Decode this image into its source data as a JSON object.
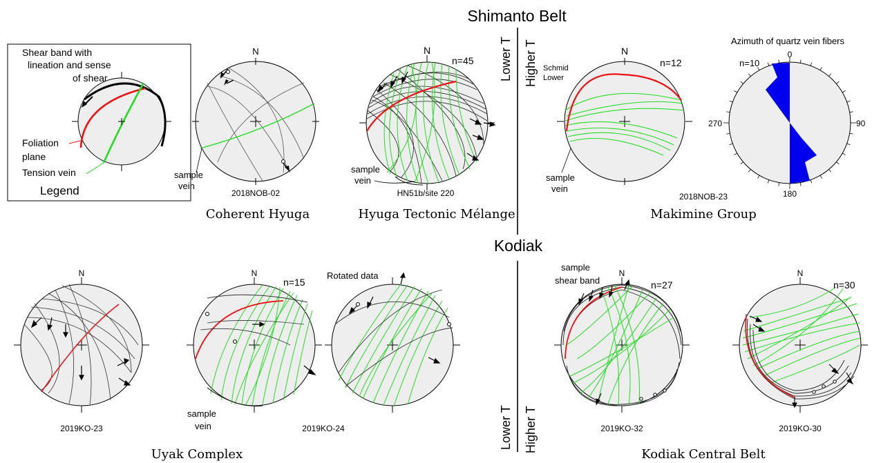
{
  "headings": {
    "top": "Shimanto Belt",
    "bottom": "Kodiak"
  },
  "temps": {
    "lower": "Lower T",
    "higher": "Higher T"
  },
  "north": "N",
  "legend": {
    "shear": [
      "Shear band with",
      "lineation and sense",
      "of shear"
    ],
    "foliation": [
      "Foliation",
      "plane"
    ],
    "tension": "Tension vein",
    "title": "Legend"
  },
  "stereonets": {
    "coherent_hyuga": {
      "sample": "2018NOB-02",
      "note": [
        "sample",
        "vein"
      ],
      "group": "Coherent Hyuga"
    },
    "hyuga_melange": {
      "sample": "HN51b/site 220",
      "count": "n=45",
      "note": [
        "sample",
        "vein"
      ],
      "group": "Hyuga Tectonic Mélange"
    },
    "makimine": {
      "sample": "2018NOB-23",
      "count": "n=12",
      "note": [
        "sample",
        "vein"
      ],
      "projection": [
        "Schmid",
        "Lower"
      ],
      "group": "Makimine Group"
    },
    "rose": {
      "title": "Azimuth of quartz vein fibers",
      "count": "n=10",
      "ticks": {
        "north": "0",
        "east": "90",
        "south": "180",
        "west": "270"
      }
    },
    "ko23": {
      "sample": "2019KO-23"
    },
    "ko24": {
      "sample": "2019KO-24",
      "count": "n=15",
      "note": [
        "sample",
        "vein"
      ]
    },
    "rotated": {
      "title": "Rotated data"
    },
    "uyak_group": "Uyak Complex",
    "ko32": {
      "sample": "2019KO-32",
      "count": "n=27",
      "note": [
        "sample",
        "shear band"
      ]
    },
    "ko30": {
      "sample": "2019KO-30",
      "count": "n=30"
    },
    "kodiak_group": "Kodiak Central Belt"
  },
  "colors": {
    "vein": "#22dd22",
    "foliation": "#ee1111",
    "shear": "#111111",
    "net_fill": "#eeeeee",
    "rose": "#0000ee"
  }
}
